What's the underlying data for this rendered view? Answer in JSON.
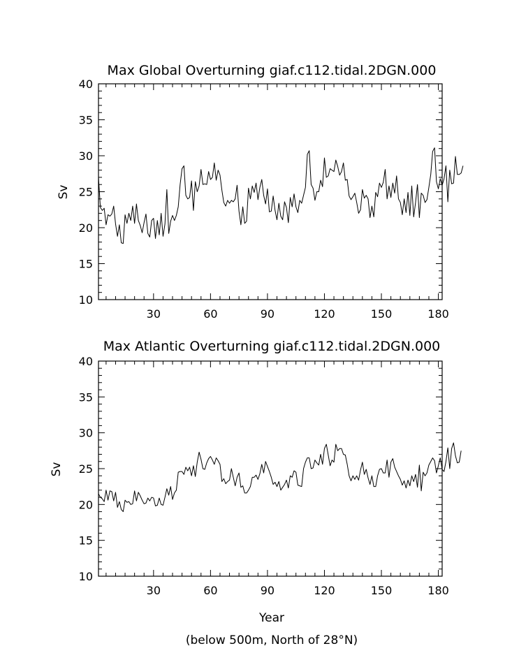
{
  "chart_data": [
    {
      "type": "line",
      "title": "Max Global Overturning giaf.c112.tidal.2DGN.000",
      "xlabel": "",
      "ylabel": "Sv",
      "xlim": [
        1,
        182
      ],
      "ylim": [
        10,
        40
      ],
      "xticks": [
        "30",
        "60",
        "90",
        "120",
        "150",
        "180"
      ],
      "yticks": [
        "10",
        "15",
        "20",
        "25",
        "30",
        "35",
        "40"
      ],
      "grid": false,
      "series": [
        {
          "values": [
            27.0,
            22.8,
            22.4,
            22.7,
            20.4,
            21.8,
            21.6,
            21.9,
            23.0,
            20.5,
            18.8,
            20.4,
            17.9,
            17.8,
            21.8,
            20.6,
            22.0,
            21.0,
            23.0,
            20.6,
            23.3,
            21.0,
            20.3,
            19.3,
            20.7,
            21.9,
            19.2,
            18.7,
            21.0,
            21.3,
            18.5,
            21.0,
            19.0,
            22.0,
            18.8,
            20.5,
            25.3,
            19.2,
            20.9,
            21.7,
            21.0,
            21.7,
            22.9,
            26.0,
            28.2,
            28.6,
            24.5,
            24.0,
            24.2,
            26.5,
            22.4,
            26.4,
            25.0,
            25.8,
            28.1,
            26.0,
            26.1,
            26.0,
            27.8,
            26.7,
            27.0,
            29.0,
            26.6,
            28.0,
            27.3,
            25.2,
            23.5,
            23.0,
            23.8,
            23.4,
            23.8,
            23.6,
            24.0,
            25.9,
            22.3,
            20.4,
            22.9,
            20.6,
            20.9,
            25.5,
            24.0,
            25.8,
            24.9,
            26.2,
            23.9,
            25.6,
            26.7,
            24.5,
            23.3,
            25.4,
            22.2,
            22.3,
            24.4,
            22.4,
            21.1,
            23.4,
            21.6,
            21.1,
            23.6,
            22.8,
            20.7,
            24.2,
            22.9,
            24.7,
            22.9,
            22.1,
            23.8,
            23.4,
            24.5,
            25.6,
            30.2,
            30.7,
            26.0,
            25.5,
            23.8,
            25.0,
            25.0,
            26.6,
            25.7,
            29.7,
            27.0,
            27.2,
            28.2,
            28.0,
            27.8,
            29.4,
            28.5,
            27.3,
            27.8,
            29.0,
            26.6,
            26.7,
            24.4,
            23.9,
            24.3,
            24.8,
            23.5,
            22.0,
            22.5,
            25.3,
            24.1,
            24.5,
            24.0,
            21.4,
            23.0,
            21.5,
            24.9,
            24.3,
            26.2,
            25.6,
            26.3,
            28.1,
            24.0,
            25.8,
            24.2,
            26.2,
            24.8,
            27.2,
            24.0,
            23.5,
            21.8,
            24.0,
            22.1,
            24.9,
            21.7,
            25.8,
            21.5,
            23.5,
            26.0,
            21.4,
            24.8,
            24.5,
            23.5,
            23.9,
            25.6,
            27.4,
            30.6,
            31.1,
            26.4,
            25.4,
            26.8,
            25.9,
            26.8,
            28.6,
            23.6,
            28.0,
            26.1,
            26.2,
            29.9,
            27.4,
            27.4,
            27.6,
            28.6
          ]
        }
      ]
    },
    {
      "type": "line",
      "title": "Max Atlantic Overturning giaf.c112.tidal.2DGN.000",
      "xlabel": "Year",
      "ylabel": "Sv",
      "xlim": [
        1,
        182
      ],
      "ylim": [
        10,
        40
      ],
      "xticks": [
        "30",
        "60",
        "90",
        "120",
        "150",
        "180"
      ],
      "yticks": [
        "10",
        "15",
        "20",
        "25",
        "30",
        "35",
        "40"
      ],
      "grid": false,
      "series": [
        {
          "values": [
            21.5,
            21.0,
            20.8,
            20.4,
            22.0,
            20.6,
            21.9,
            21.8,
            20.5,
            21.7,
            19.6,
            20.4,
            19.3,
            19.0,
            20.6,
            20.3,
            20.4,
            20.0,
            20.1,
            21.9,
            20.5,
            21.7,
            21.2,
            20.6,
            20.1,
            20.2,
            20.9,
            20.5,
            21.0,
            20.9,
            19.8,
            19.9,
            20.9,
            20.0,
            19.9,
            21.0,
            22.2,
            21.3,
            22.5,
            20.7,
            21.6,
            22.0,
            24.5,
            24.6,
            24.6,
            24.2,
            25.2,
            24.7,
            25.2,
            24.0,
            25.4,
            23.9,
            25.9,
            27.3,
            26.3,
            25.0,
            24.9,
            25.8,
            26.4,
            26.7,
            26.2,
            25.6,
            26.5,
            26.1,
            25.6,
            23.2,
            23.6,
            22.9,
            23.2,
            23.4,
            25.0,
            23.8,
            22.6,
            23.8,
            24.4,
            22.4,
            22.6,
            21.6,
            21.6,
            22.0,
            22.5,
            23.8,
            23.8,
            24.1,
            23.5,
            24.3,
            25.6,
            24.4,
            26.0,
            25.3,
            24.6,
            23.8,
            22.8,
            23.1,
            22.5,
            23.2,
            22.0,
            22.4,
            22.8,
            23.4,
            22.3,
            24.0,
            23.8,
            24.7,
            24.5,
            22.7,
            22.6,
            22.5,
            25.0,
            25.9,
            26.5,
            26.5,
            25.0,
            25.1,
            26.2,
            25.8,
            25.5,
            27.0,
            25.6,
            27.8,
            28.4,
            26.9,
            25.4,
            26.2,
            25.9,
            28.4,
            27.5,
            27.8,
            27.8,
            27.0,
            26.9,
            25.6,
            24.0,
            23.3,
            24.0,
            23.5,
            24.0,
            23.4,
            24.8,
            25.9,
            24.2,
            24.9,
            23.7,
            22.8,
            24.0,
            22.5,
            22.5,
            24.0,
            24.9,
            25.0,
            24.4,
            24.4,
            26.2,
            23.8,
            25.9,
            26.4,
            25.2,
            24.6,
            24.0,
            23.5,
            22.7,
            23.3,
            22.3,
            23.4,
            22.6,
            24.0,
            23.2,
            24.2,
            22.4,
            25.5,
            21.9,
            24.5,
            24.0,
            24.4,
            25.5,
            26.0,
            26.5,
            26.1,
            24.4,
            25.4,
            26.5,
            24.9,
            24.6,
            26.0,
            27.9,
            25.0,
            27.8,
            28.6,
            26.8,
            25.8,
            25.9,
            27.5
          ]
        }
      ]
    }
  ],
  "footnote": "(below 500m, North of 28°N)"
}
